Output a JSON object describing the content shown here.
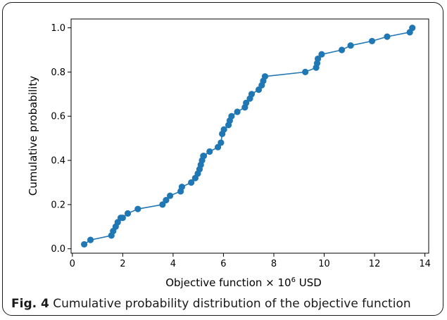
{
  "caption": {
    "fig_label": "Fig. 4",
    "text": "Cumulative probability distribution of the objective function"
  },
  "chart_data": {
    "type": "line",
    "markers": true,
    "title": "",
    "xlabel": "Objective function × 10",
    "xlabel_superscript": "6",
    "xlabel_suffix": " USD",
    "ylabel": "Cumulative probability",
    "xlim": [
      -0.05,
      14.15
    ],
    "ylim": [
      -0.02,
      1.04
    ],
    "x_ticks": [
      0,
      2,
      4,
      6,
      8,
      10,
      12,
      14
    ],
    "x_tick_labels": [
      "0",
      "2",
      "4",
      "6",
      "8",
      "10",
      "12",
      "14"
    ],
    "y_ticks": [
      0.0,
      0.2,
      0.4,
      0.6,
      0.8,
      1.0
    ],
    "y_tick_labels": [
      "0.0",
      "0.2",
      "0.4",
      "0.6",
      "0.8",
      "1.0"
    ],
    "grid": false,
    "series_color": "#1f77b4",
    "x": [
      0.47,
      0.72,
      1.55,
      1.62,
      1.72,
      1.8,
      1.92,
      2.0,
      2.2,
      2.6,
      3.58,
      3.72,
      3.88,
      4.3,
      4.35,
      4.72,
      4.88,
      4.98,
      5.05,
      5.1,
      5.15,
      5.2,
      5.22,
      5.45,
      5.78,
      5.9,
      5.95,
      6.02,
      6.2,
      6.25,
      6.32,
      6.55,
      6.85,
      6.9,
      7.05,
      7.12,
      7.4,
      7.52,
      7.58,
      7.65,
      9.25,
      9.68,
      9.72,
      9.75,
      9.9,
      10.7,
      11.05,
      11.9,
      12.5,
      13.4,
      13.5
    ],
    "y": [
      0.02,
      0.04,
      0.06,
      0.08,
      0.1,
      0.12,
      0.14,
      0.14,
      0.16,
      0.18,
      0.2,
      0.22,
      0.24,
      0.26,
      0.28,
      0.3,
      0.32,
      0.34,
      0.36,
      0.38,
      0.4,
      0.42,
      0.42,
      0.44,
      0.46,
      0.48,
      0.52,
      0.54,
      0.56,
      0.58,
      0.6,
      0.62,
      0.64,
      0.66,
      0.68,
      0.7,
      0.72,
      0.74,
      0.76,
      0.78,
      0.8,
      0.82,
      0.84,
      0.86,
      0.88,
      0.9,
      0.92,
      0.94,
      0.96,
      0.98,
      1.0
    ]
  }
}
